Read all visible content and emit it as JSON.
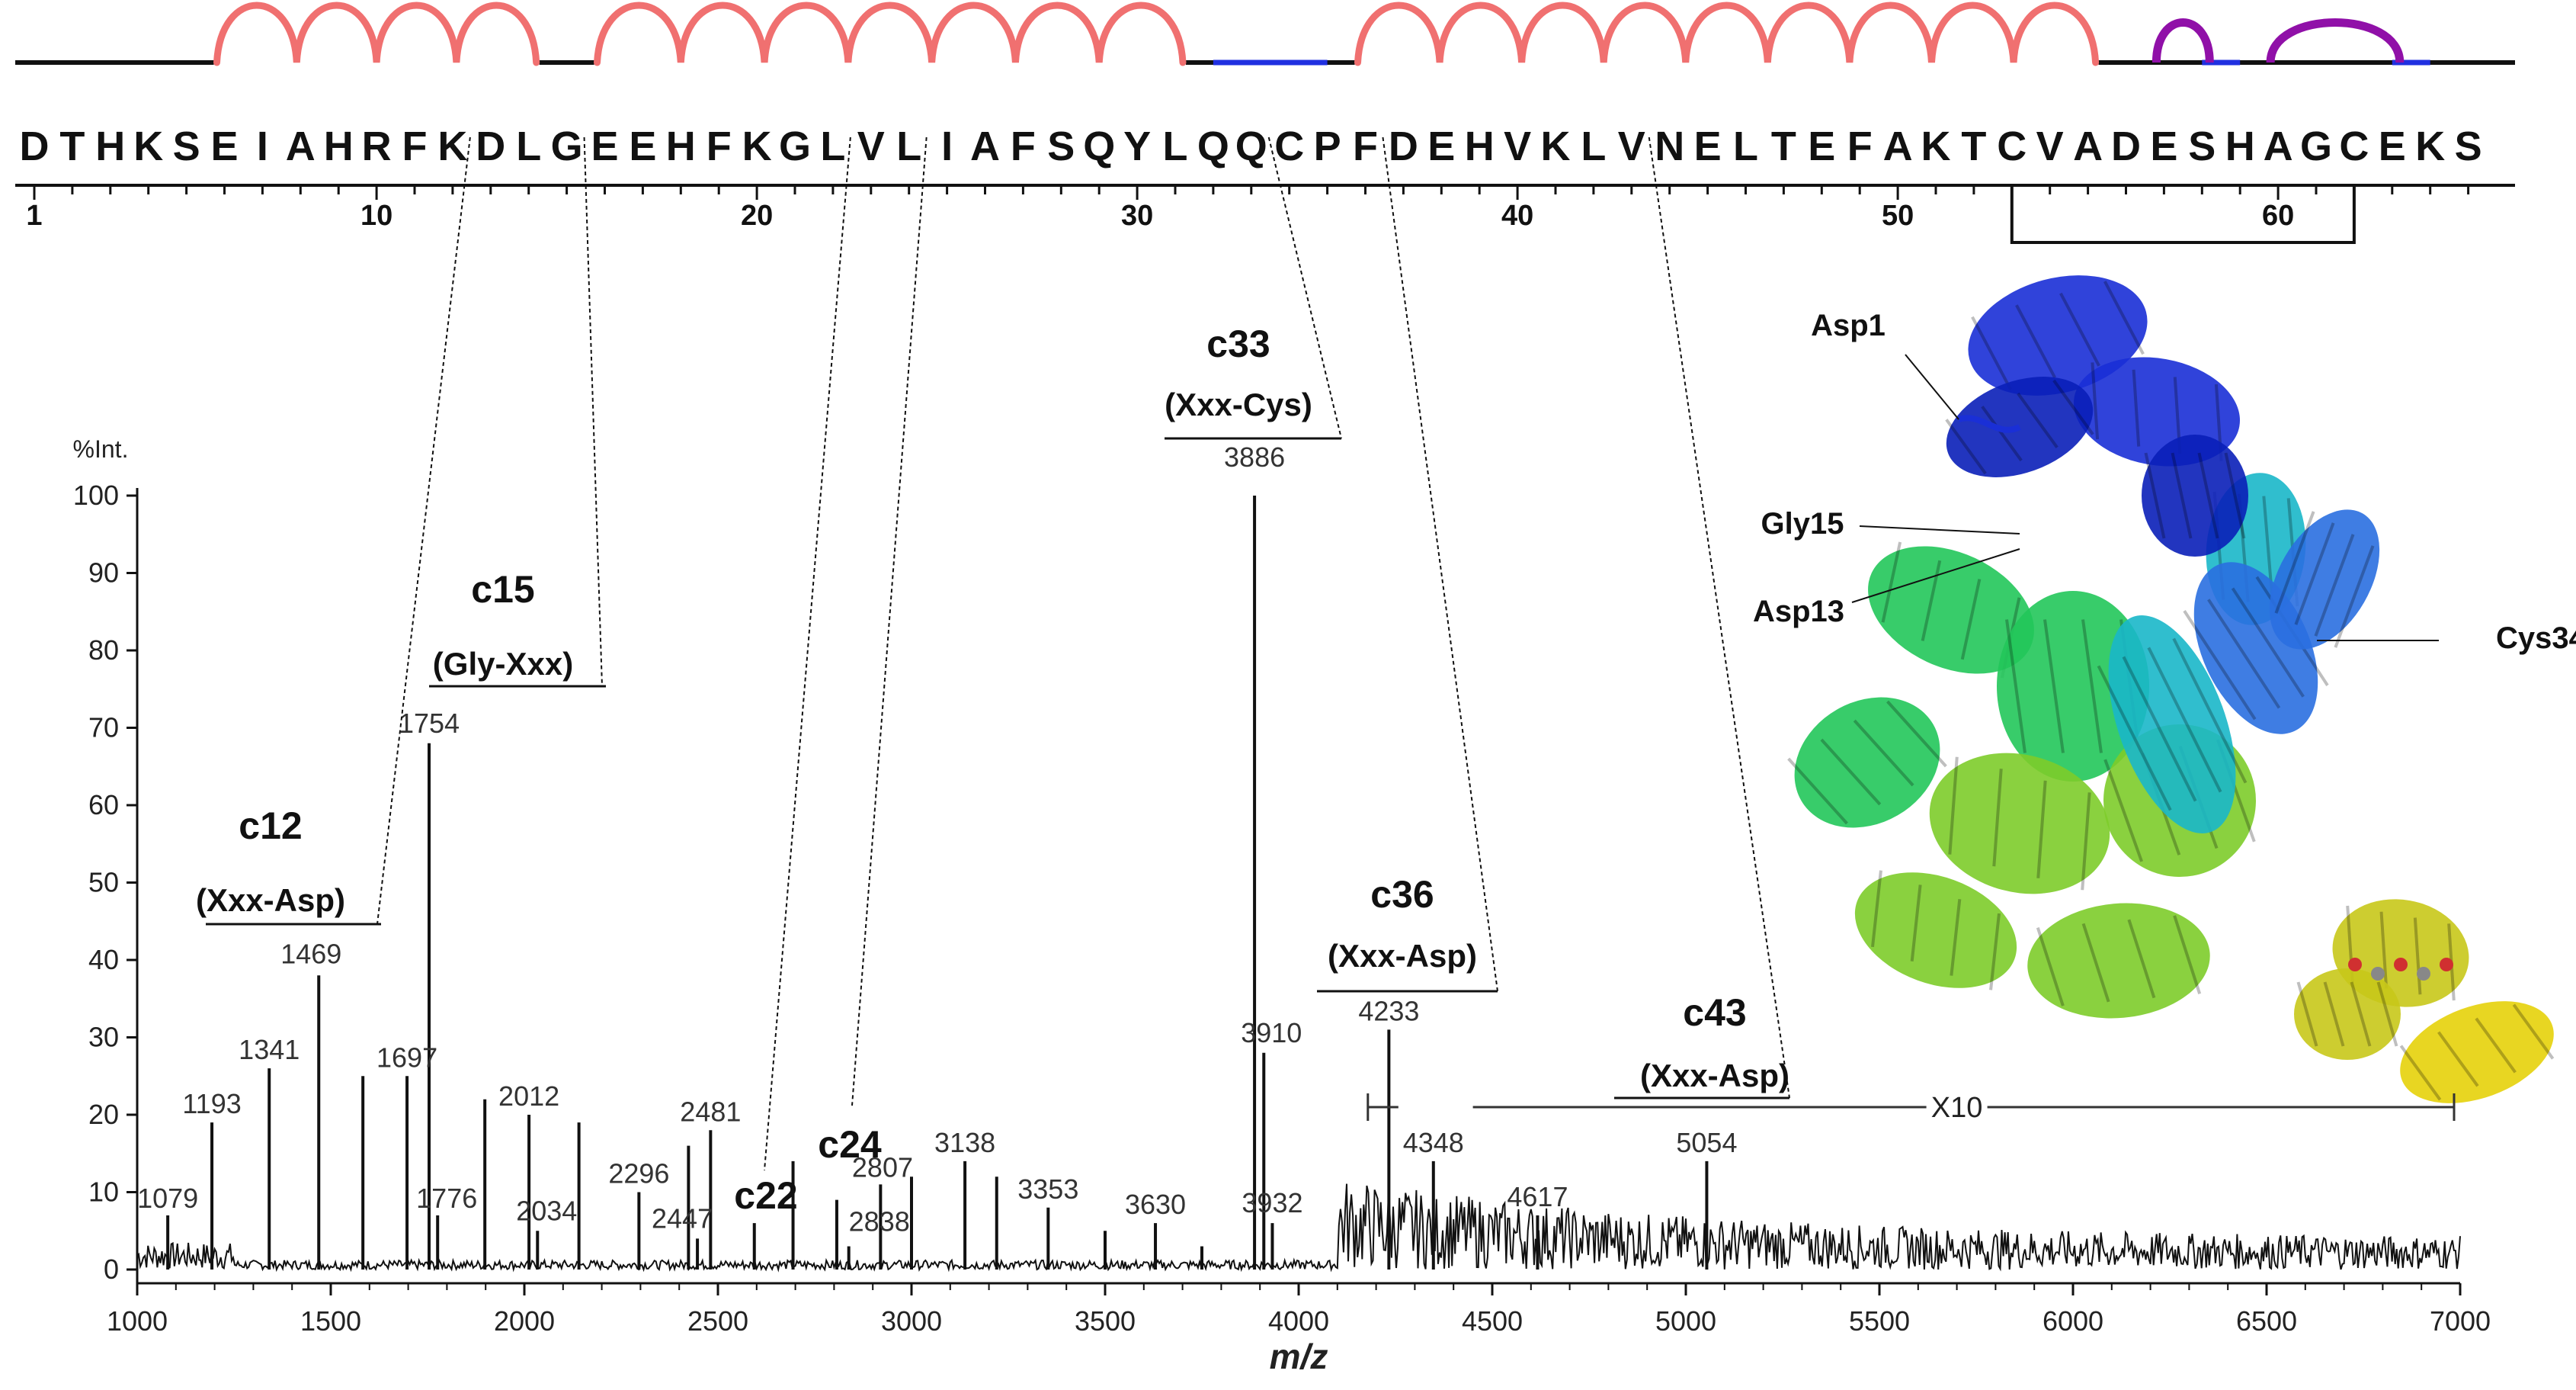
{
  "sequence": {
    "letters": [
      "D",
      "T",
      "H",
      "K",
      "S",
      "E",
      "I",
      "A",
      "H",
      "R",
      "F",
      "K",
      "D",
      "L",
      "G",
      "E",
      "E",
      "H",
      "F",
      "K",
      "G",
      "L",
      "V",
      "L",
      "I",
      "A",
      "F",
      "S",
      "Q",
      "Y",
      "L",
      "Q",
      "Q",
      "C",
      "P",
      "F",
      "D",
      "E",
      "H",
      "V",
      "K",
      "L",
      "V",
      "N",
      "E",
      "L",
      "T",
      "E",
      "F",
      "A",
      "K",
      "T",
      "C",
      "V",
      "A",
      "D",
      "E",
      "S",
      "H",
      "A",
      "G",
      "C",
      "E",
      "K",
      "S"
    ],
    "numbers": [
      "1",
      "10",
      "20",
      "30",
      "40",
      "50",
      "60"
    ],
    "number_positions": [
      1,
      10,
      20,
      30,
      40,
      50,
      60
    ],
    "helices": [
      [
        6,
        14
      ],
      [
        16,
        31
      ],
      [
        36,
        55
      ]
    ],
    "loops_blue": [
      [
        32,
        35
      ],
      [
        58,
        59
      ],
      [
        63,
        64
      ]
    ],
    "turns_purple": [
      [
        57,
        58
      ],
      [
        60,
        63
      ]
    ],
    "disulfide": [
      53,
      62
    ]
  },
  "protein": {
    "labels": [
      "Asp1",
      "Gly15",
      "Asp13",
      "Cys34"
    ],
    "colors": [
      "#1a2fd6",
      "#0a1fb8",
      "#2a6fe0",
      "#19b7c9",
      "#22c75a",
      "#7dcc2a",
      "#c8c81a",
      "#e6d20a"
    ]
  },
  "chart_data": {
    "type": "bar",
    "xlabel": "m/z",
    "ylabel": "%Int.",
    "xlim": [
      1000,
      7000
    ],
    "ylim": [
      0,
      100
    ],
    "xticks": [
      1000,
      1500,
      2000,
      2500,
      3000,
      3500,
      4000,
      4500,
      5000,
      5500,
      6000,
      6500,
      7000
    ],
    "yticks": [
      0,
      10,
      20,
      30,
      40,
      50,
      60,
      70,
      80,
      90,
      100
    ],
    "zoom": {
      "label": "X10",
      "from_mz": 4100,
      "to_mz": 7000
    },
    "peaks": [
      {
        "mz": 1079,
        "intensity": 7,
        "label": "1079"
      },
      {
        "mz": 1193,
        "intensity": 19,
        "label": "1193"
      },
      {
        "mz": 1341,
        "intensity": 26,
        "label": "1341"
      },
      {
        "mz": 1469,
        "intensity": 38,
        "label": "1469"
      },
      {
        "mz": 1583,
        "intensity": 25,
        "label": ""
      },
      {
        "mz": 1697,
        "intensity": 25,
        "label": "1697"
      },
      {
        "mz": 1754,
        "intensity": 68,
        "label": "1754"
      },
      {
        "mz": 1776,
        "intensity": 7,
        "label": "1776"
      },
      {
        "mz": 1898,
        "intensity": 22,
        "label": ""
      },
      {
        "mz": 2012,
        "intensity": 20,
        "label": "2012"
      },
      {
        "mz": 2034,
        "intensity": 5,
        "label": "2034"
      },
      {
        "mz": 2141,
        "intensity": 19,
        "label": ""
      },
      {
        "mz": 2296,
        "intensity": 10,
        "label": "2296"
      },
      {
        "mz": 2424,
        "intensity": 16,
        "label": ""
      },
      {
        "mz": 2447,
        "intensity": 4,
        "label": "2447"
      },
      {
        "mz": 2481,
        "intensity": 18,
        "label": "2481"
      },
      {
        "mz": 2594,
        "intensity": 6,
        "label": ""
      },
      {
        "mz": 2694,
        "intensity": 14,
        "label": ""
      },
      {
        "mz": 2807,
        "intensity": 9,
        "label": "2807"
      },
      {
        "mz": 2838,
        "intensity": 3,
        "label": "2838"
      },
      {
        "mz": 2920,
        "intensity": 11,
        "label": ""
      },
      {
        "mz": 3000,
        "intensity": 12,
        "label": ""
      },
      {
        "mz": 3138,
        "intensity": 14,
        "label": "3138"
      },
      {
        "mz": 3220,
        "intensity": 12,
        "label": ""
      },
      {
        "mz": 3353,
        "intensity": 8,
        "label": "3353"
      },
      {
        "mz": 3500,
        "intensity": 5,
        "label": ""
      },
      {
        "mz": 3630,
        "intensity": 6,
        "label": "3630"
      },
      {
        "mz": 3750,
        "intensity": 3,
        "label": ""
      },
      {
        "mz": 3886,
        "intensity": 100,
        "label": "3886"
      },
      {
        "mz": 3910,
        "intensity": 28,
        "label": "3910"
      },
      {
        "mz": 3932,
        "intensity": 6,
        "label": "3932"
      },
      {
        "mz": 4233,
        "intensity": 31,
        "label": "4233"
      },
      {
        "mz": 4348,
        "intensity": 14,
        "label": "4348"
      },
      {
        "mz": 4617,
        "intensity": 7,
        "label": "4617"
      },
      {
        "mz": 5054,
        "intensity": 14,
        "label": "5054"
      }
    ],
    "ion_annotations": [
      {
        "ion": "c12",
        "bond": "(Xxx-Asp)",
        "residue": 12,
        "mz": 1469
      },
      {
        "ion": "c15",
        "bond": "(Gly-Xxx)",
        "residue": 15,
        "mz": 1754
      },
      {
        "ion": "c22",
        "bond": "",
        "residue": 22,
        "mz": 2594
      },
      {
        "ion": "c24",
        "bond": "",
        "residue": 24,
        "mz": 2807
      },
      {
        "ion": "c33",
        "bond": "(Xxx-Cys)",
        "residue": 33,
        "mz": 3886
      },
      {
        "ion": "c36",
        "bond": "(Xxx-Asp)",
        "residue": 36,
        "mz": 4233
      },
      {
        "ion": "c43",
        "bond": "(Xxx-Asp)",
        "residue": 43,
        "mz": 5054
      }
    ]
  }
}
